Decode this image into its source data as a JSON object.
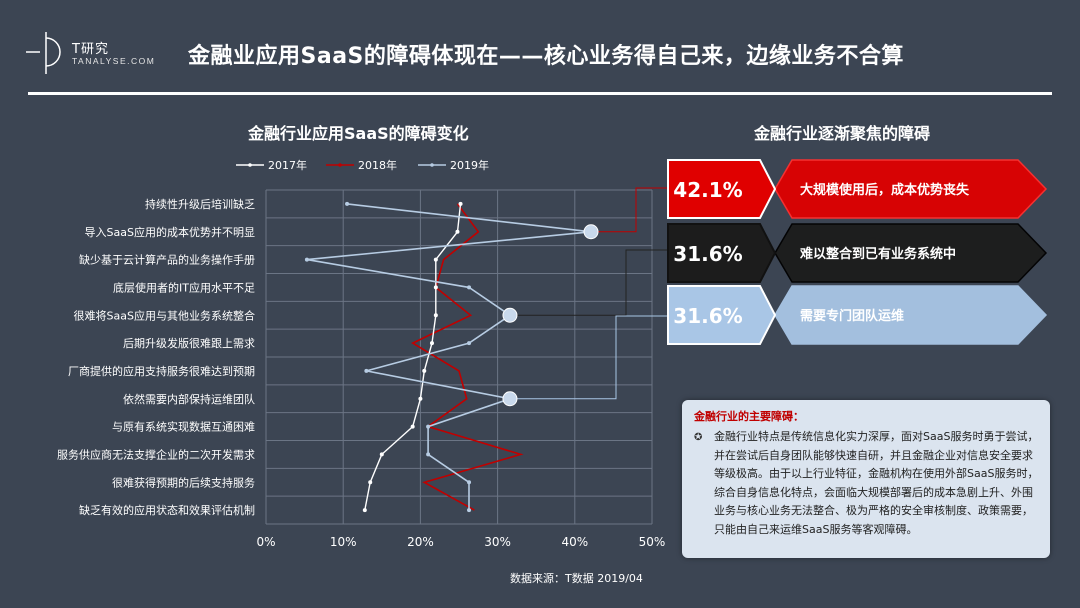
{
  "logo": {
    "brand": "T研究",
    "sub": "TANALYSE.COM"
  },
  "headline": "金融业应用SaaS的障碍体现在——核心业务得自己来，边缘业务不合算",
  "chart_title": "金融行业应用SaaS的障碍变化",
  "right_title": "金融行业逐渐聚焦的障碍",
  "source": "数据来源：T数据 2019/04",
  "colors": {
    "y2017": "#ffffff",
    "y2018": "#c00000",
    "y2019": "#b7cce3",
    "red_bar": "#e00000",
    "black_bar": "#1c1c1c",
    "blue_bar": "#a9c6e6"
  },
  "chart_data": {
    "type": "line",
    "orientation": "horizontal-category",
    "categories": [
      "持续性升级后培训缺乏",
      "导入SaaS应用的成本优势并不明显",
      "缺少基于云计算产品的业务操作手册",
      "底层使用者的IT应用水平不足",
      "很难将SaaS应用与其他业务系统整合",
      "后期升级发版很难跟上需求",
      "厂商提供的应用支持服务很难达到预期",
      "依然需要内部保持运维团队",
      "与原有系统实现数据互通困难",
      "服务供应商无法支撑企业的二次开发需求",
      "很难获得预期的后续支持服务",
      "缺乏有效的应用状态和效果评估机制"
    ],
    "series": [
      {
        "name": "2017年",
        "values": [
          25.2,
          24.8,
          22.0,
          22.0,
          22.0,
          21.5,
          20.5,
          20.0,
          19.0,
          15.0,
          13.5,
          12.8
        ]
      },
      {
        "name": "2018年",
        "values": [
          24.8,
          27.5,
          23.0,
          22.0,
          26.5,
          19.0,
          25.0,
          26.0,
          21.0,
          33.0,
          20.5,
          27.0
        ]
      },
      {
        "name": "2019年",
        "values": [
          10.5,
          42.1,
          5.3,
          26.3,
          31.6,
          26.3,
          13.0,
          31.6,
          21.0,
          21.0,
          26.3,
          26.3
        ]
      }
    ],
    "xlim": [
      0,
      50
    ],
    "xticks": [
      "0%",
      "10%",
      "20%",
      "30%",
      "40%",
      "50%"
    ],
    "grid": true,
    "legend": "top"
  },
  "arrows": [
    {
      "pct": "42.1%",
      "text": "大规模使用后，成本优势丧失"
    },
    {
      "pct": "31.6%",
      "text": "难以整合到已有业务系统中"
    },
    {
      "pct": "31.6%",
      "text": "需要专门团队运维"
    }
  ],
  "panel": {
    "heading": "金融行业的主要障碍：",
    "bullet": "✪",
    "body": "金融行业特点是传统信息化实力深厚，面对SaaS服务时勇于尝试，并在尝试后自身团队能够快速自研，并且金融企业对信息安全要求等级极高。由于以上行业特征，金融机构在使用外部SaaS服务时，综合自身信息化特点，会面临大规模部署后的成本急剧上升、外围业务与核心业务无法整合、极为严格的安全审核制度、政策需要，只能由自己来运维SaaS服务等客观障碍。"
  }
}
